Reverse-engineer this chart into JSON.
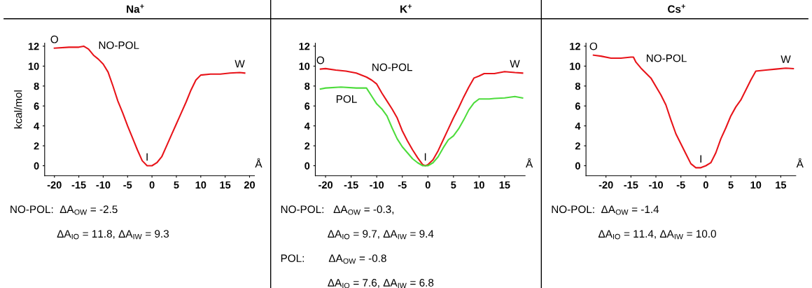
{
  "chart_data": [
    {
      "type": "line",
      "title": "Na$^{+}$",
      "xlabel": "Å",
      "ylabel": "kcal/mol",
      "xlim": [
        -22,
        21
      ],
      "ylim": [
        -1,
        12.3
      ],
      "xticks": [
        -20,
        -15,
        -10,
        -5,
        0,
        5,
        10,
        15,
        20
      ],
      "yticks": [
        0,
        2,
        4,
        6,
        8,
        10,
        12
      ],
      "grid": false,
      "legend": false,
      "series": [
        {
          "name": "NO-POL",
          "color": "#e8141a",
          "x": [
            -20,
            -17,
            -15,
            -14,
            -13,
            -12,
            -11,
            -10,
            -9,
            -8,
            -7,
            -6,
            -5,
            -4,
            -3,
            -2,
            -1,
            0,
            1,
            2,
            3,
            4,
            5,
            6,
            7,
            8,
            9,
            10,
            12,
            14,
            16,
            18,
            19
          ],
          "values": [
            11.8,
            11.9,
            11.9,
            12.0,
            11.7,
            11.1,
            10.7,
            10.2,
            9.4,
            8.0,
            6.5,
            5.3,
            4.0,
            2.8,
            1.6,
            0.5,
            0.0,
            0.0,
            0.3,
            0.9,
            2.0,
            3.1,
            4.2,
            5.3,
            6.4,
            7.6,
            8.6,
            9.1,
            9.2,
            9.2,
            9.3,
            9.35,
            9.3
          ]
        }
      ],
      "annotations": [
        {
          "text": "O",
          "x": -20,
          "y": 11.8
        },
        {
          "text": "I",
          "x": -1,
          "y": 0.0
        },
        {
          "text": "W",
          "x": 18,
          "y": 9.35
        },
        "NO-POL:  ΔA$_{OW}$ = -2.5",
        "ΔA$_{IO}$ = 11.8, ΔA$_{IW}$ = 9.3"
      ]
    },
    {
      "type": "line",
      "title": "K$^{+}$",
      "xlabel": "Å",
      "xlim": [
        -22,
        19
      ],
      "ylim": [
        -1,
        12.3
      ],
      "xticks": [
        -20,
        -15,
        -10,
        -5,
        0,
        5,
        10,
        15
      ],
      "yticks": [
        0,
        2,
        4,
        6,
        8,
        10,
        12
      ],
      "grid": false,
      "legend": false,
      "series": [
        {
          "name": "NO-POL",
          "color": "#e8141a",
          "x": [
            -21,
            -20,
            -18,
            -16,
            -14,
            -12,
            -11,
            -10,
            -9,
            -8,
            -7,
            -6,
            -5,
            -4,
            -3,
            -2,
            -1,
            -0.5,
            0,
            1,
            2,
            3,
            4,
            5,
            6,
            7,
            8,
            9,
            10,
            11,
            13,
            15,
            17,
            18.5
          ],
          "values": [
            9.7,
            9.75,
            9.6,
            9.5,
            9.3,
            8.9,
            8.6,
            8.2,
            7.3,
            6.5,
            5.7,
            4.8,
            3.5,
            2.5,
            1.6,
            0.8,
            0.1,
            0.0,
            0.1,
            0.6,
            1.5,
            2.6,
            3.7,
            4.8,
            5.8,
            6.9,
            7.9,
            8.8,
            9.0,
            9.25,
            9.25,
            9.45,
            9.35,
            9.3
          ]
        },
        {
          "name": "POL",
          "color": "#4ddc3c",
          "x": [
            -21,
            -20,
            -17,
            -14,
            -12,
            -11,
            -10,
            -9,
            -8,
            -7,
            -6,
            -5,
            -4,
            -3,
            -2,
            -1,
            0,
            1,
            2,
            3,
            4,
            5,
            6,
            7,
            8,
            9,
            10,
            12,
            13,
            15,
            17,
            18.5
          ],
          "values": [
            7.7,
            7.8,
            7.9,
            7.8,
            7.8,
            7.0,
            6.2,
            5.7,
            5.0,
            3.8,
            2.7,
            1.9,
            1.3,
            0.7,
            0.3,
            0.0,
            0.0,
            0.3,
            0.9,
            1.8,
            2.6,
            3.0,
            3.7,
            4.6,
            5.6,
            6.3,
            6.7,
            6.7,
            6.75,
            6.8,
            6.95,
            6.8
          ]
        }
      ],
      "annotations": [
        {
          "text": "O",
          "x": -21,
          "y": 9.7
        },
        {
          "text": "I",
          "x": -0.5,
          "y": 0.0
        },
        {
          "text": "W",
          "x": 17,
          "y": 9.35
        },
        "NO-POL:   ΔA$_{OW}$ = -0.3,",
        "ΔA$_{IO}$ = 9.7, ΔA$_{IW}$ = 9.4",
        "POL:        ΔA$_{OW}$ = -0.8",
        "ΔA$_{IO}$ = 7.6, ΔA$_{IW}$ = 6.8"
      ]
    },
    {
      "type": "line",
      "title": "Cs$^{+}$",
      "xlabel": "Å",
      "xlim": [
        -24,
        18
      ],
      "ylim": [
        -1,
        12.3
      ],
      "xticks": [
        -20,
        -15,
        -10,
        -5,
        0,
        5,
        10,
        15
      ],
      "yticks": [
        0,
        2,
        4,
        6,
        8,
        10,
        12
      ],
      "grid": false,
      "legend": false,
      "series": [
        {
          "name": "NO-POL",
          "color": "#e8141a",
          "x": [
            -22.5,
            -21,
            -19,
            -17,
            -15,
            -14.5,
            -14,
            -13,
            -11,
            -9,
            -8,
            -7,
            -6,
            -5,
            -4,
            -3,
            -2,
            -1,
            0,
            1,
            2,
            3,
            4,
            5,
            6,
            7,
            8,
            9,
            10,
            12,
            14,
            16,
            17.5
          ],
          "values": [
            11.1,
            11.0,
            10.8,
            10.8,
            10.9,
            10.9,
            10.4,
            9.8,
            8.8,
            7.1,
            6.1,
            4.6,
            3.2,
            2.2,
            1.2,
            0.2,
            -0.2,
            -0.2,
            0.0,
            0.3,
            1.3,
            2.7,
            3.8,
            5.0,
            5.9,
            6.6,
            7.6,
            8.6,
            9.5,
            9.6,
            9.7,
            9.8,
            9.75
          ]
        }
      ],
      "annotations": [
        {
          "text": "O",
          "x": -22.5,
          "y": 11.1
        },
        {
          "text": "I",
          "x": -1,
          "y": -0.2
        },
        {
          "text": "W",
          "x": 16,
          "y": 9.8
        },
        "NO-POL:  ΔA$_{OW}$ = -1.4",
        "ΔA$_{IO}$ = 11.4, ΔA$_{IW}$ = 10.0"
      ]
    }
  ]
}
